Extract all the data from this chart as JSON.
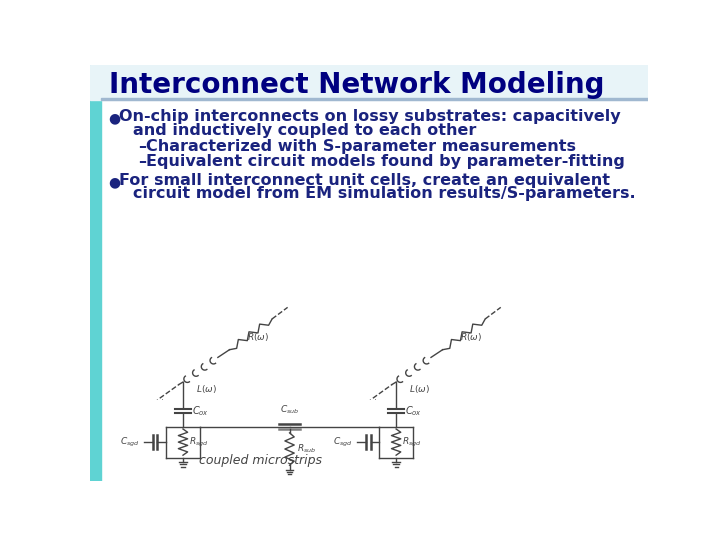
{
  "title": "Interconnect Network Modeling",
  "title_color": "#000080",
  "title_fontsize": 20,
  "bg_color": "#FFFFFF",
  "left_bar_color": "#5FD3D3",
  "text_color": "#1a237e",
  "bullet1_line1": "On-chip interconnects on lossy substrates: capacitively",
  "bullet1_line2": "and inductively coupled to each other",
  "sub1": "Characterized with S-parameter measurements",
  "sub2": "Equivalent circuit models found by parameter-fitting",
  "bullet2_line1": "For small interconnect unit cells, create an equivalent",
  "bullet2_line2": "circuit model from EM simulation results/S-parameters.",
  "caption": "coupled microstrips",
  "circuit_color": "#444444",
  "lw": 1.0
}
